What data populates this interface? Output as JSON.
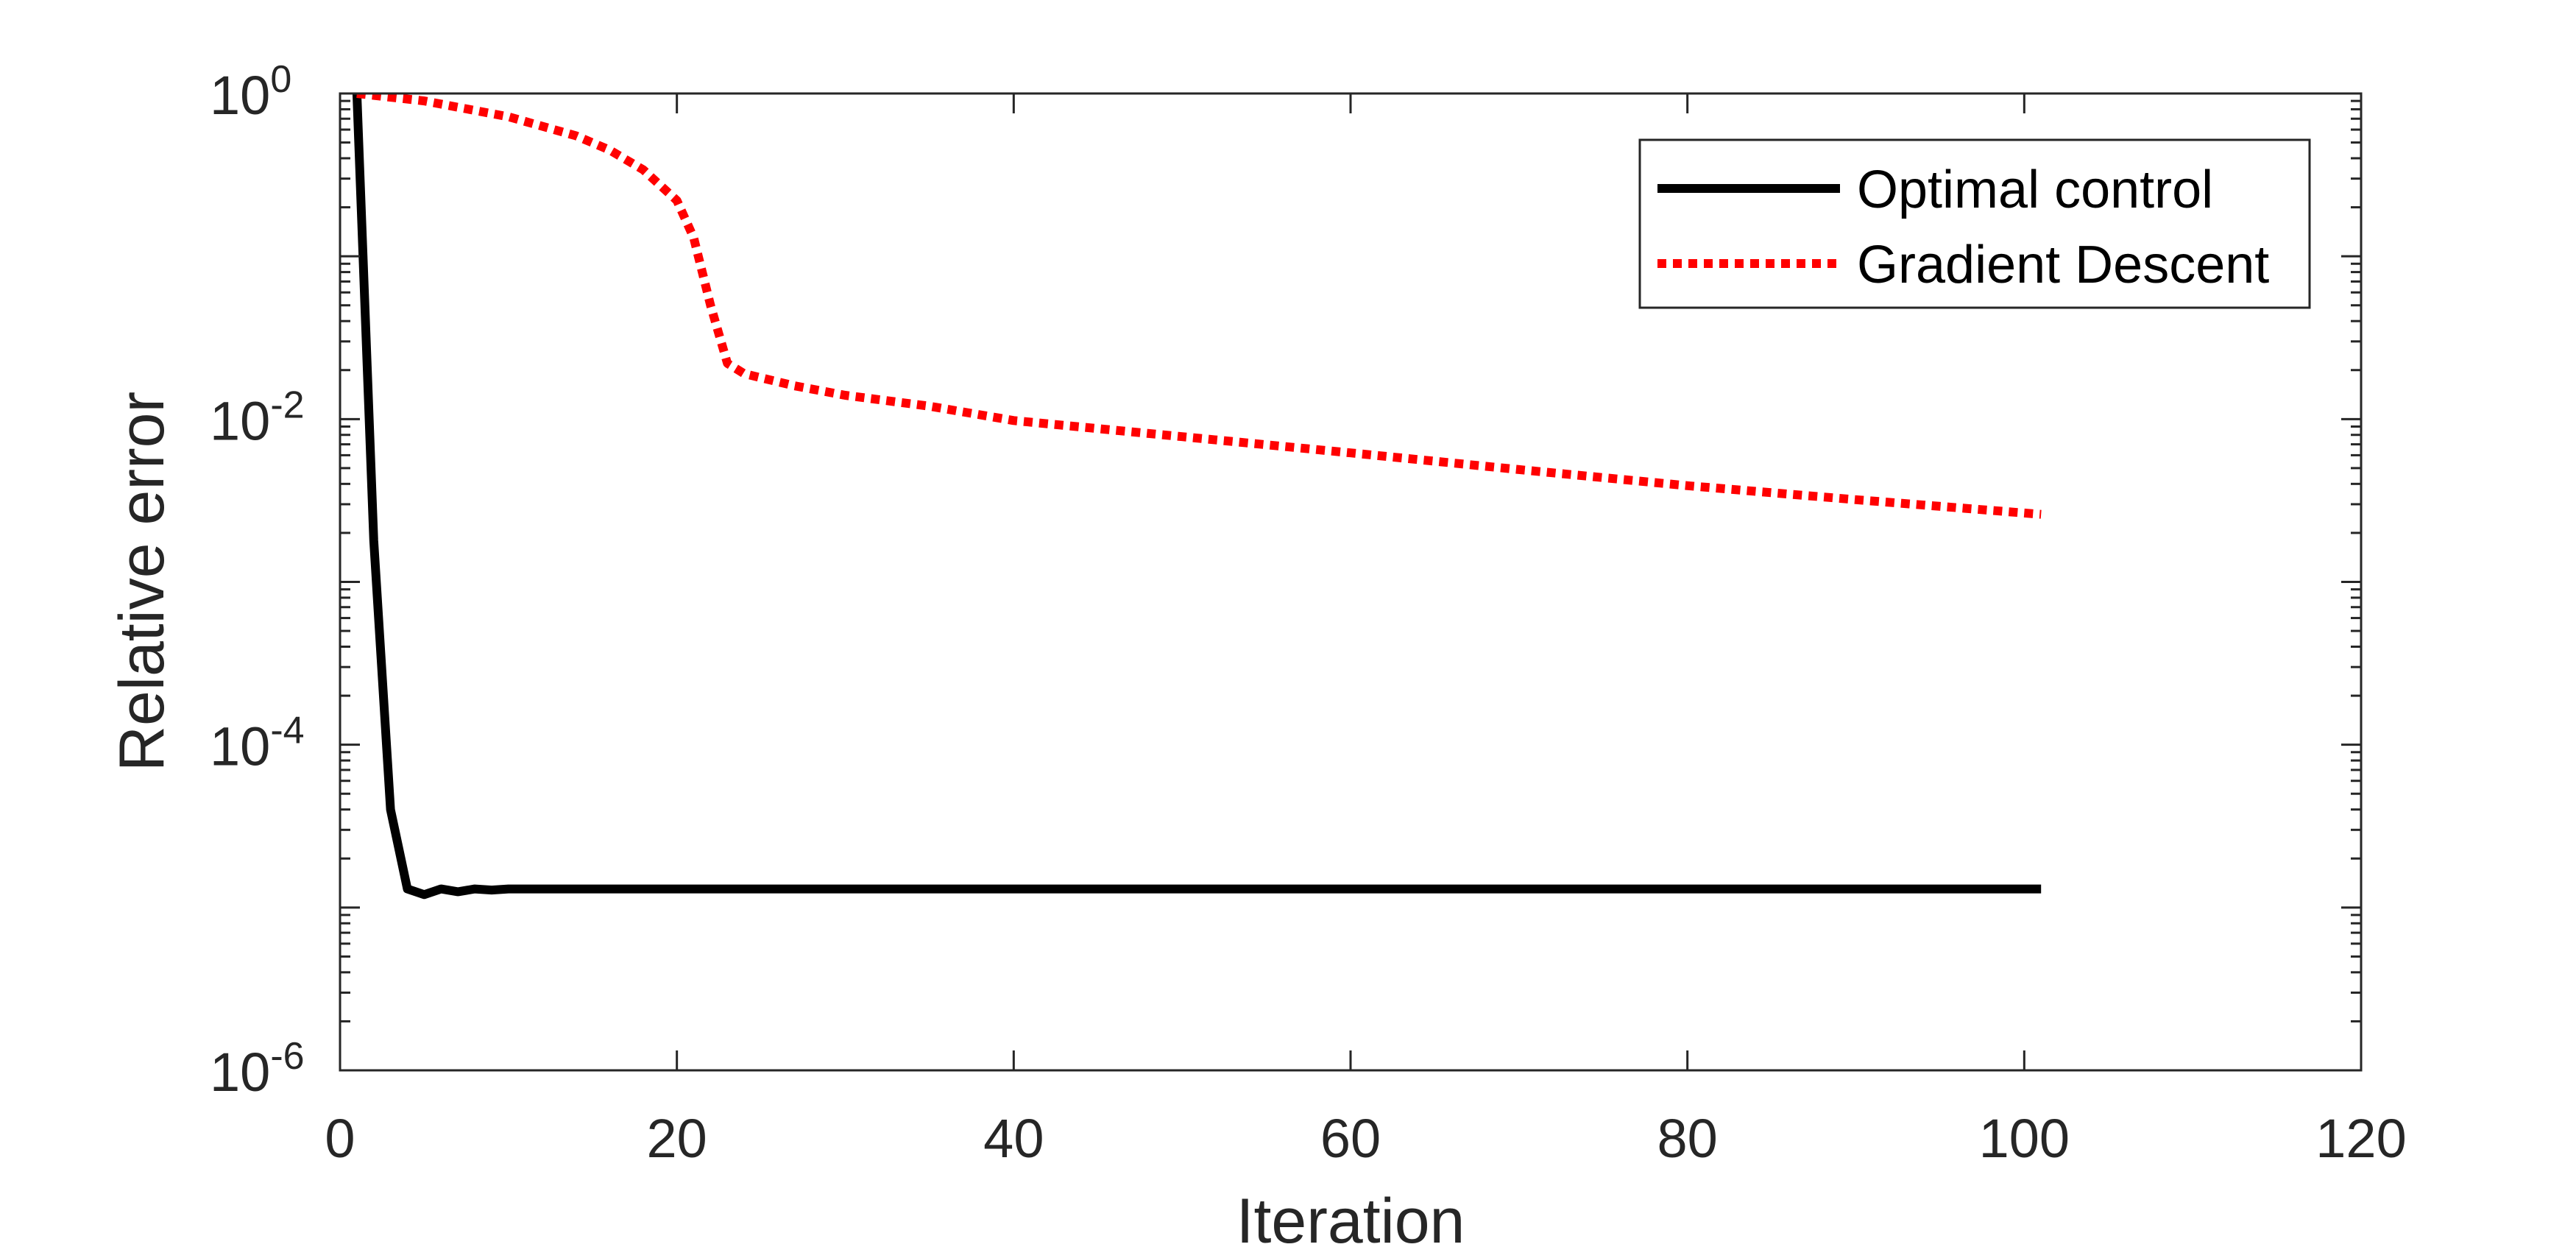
{
  "chart_data": {
    "type": "line",
    "title": "",
    "xlabel": "Iteration",
    "ylabel": "Relative error",
    "xlim": [
      0,
      120
    ],
    "ylim": [
      1e-06,
      1
    ],
    "yscale": "log",
    "xticks": [
      "0",
      "20",
      "40",
      "60",
      "80",
      "100",
      "120"
    ],
    "yticks": [
      {
        "base": "10",
        "exp": "0"
      },
      {
        "base": "10",
        "exp": "-2"
      },
      {
        "base": "10",
        "exp": "-4"
      },
      {
        "base": "10",
        "exp": "-6"
      }
    ],
    "grid": false,
    "legend_position": "top-right",
    "series": [
      {
        "name": "Optimal control",
        "color": "#000000",
        "style": "solid",
        "x": [
          1,
          2,
          3,
          4,
          5,
          6,
          7,
          8,
          9,
          10,
          20,
          40,
          60,
          80,
          101
        ],
        "y": [
          1.0,
          0.0018,
          4e-05,
          1.3e-05,
          1.2e-05,
          1.3e-05,
          1.25e-05,
          1.3e-05,
          1.28e-05,
          1.3e-05,
          1.3e-05,
          1.3e-05,
          1.3e-05,
          1.3e-05,
          1.3e-05
        ]
      },
      {
        "name": "Gradient Descent",
        "color": "#ff0000",
        "style": "dotted",
        "x": [
          1,
          5,
          10,
          14,
          16,
          18,
          20,
          21,
          22,
          23,
          24,
          27,
          30,
          35,
          40,
          50,
          60,
          70,
          80,
          90,
          101
        ],
        "y": [
          1.0,
          0.9,
          0.72,
          0.55,
          0.45,
          0.34,
          0.22,
          0.13,
          0.05,
          0.022,
          0.019,
          0.016,
          0.014,
          0.012,
          0.0098,
          0.0078,
          0.0062,
          0.0049,
          0.0039,
          0.0032,
          0.0026
        ]
      }
    ]
  }
}
